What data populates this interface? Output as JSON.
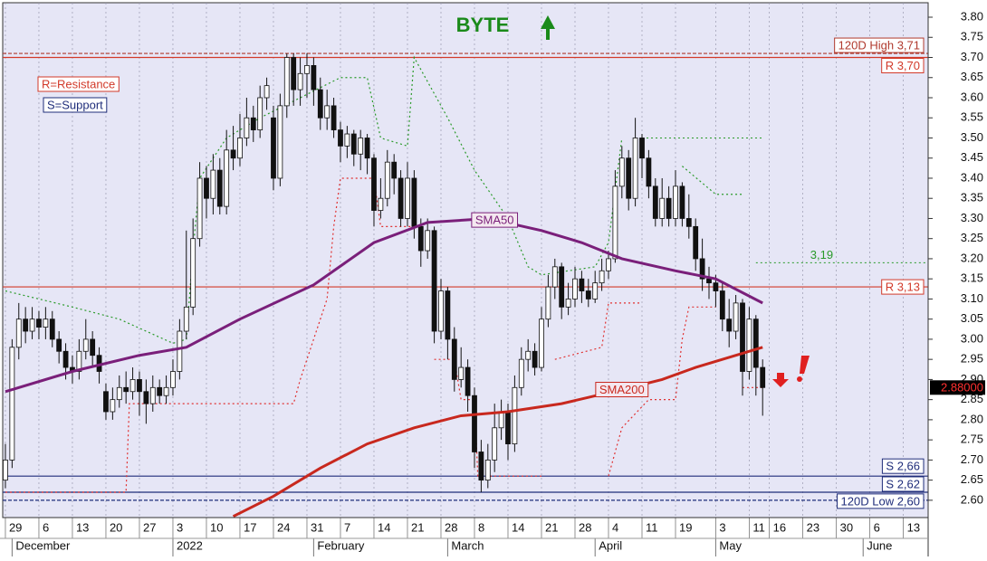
{
  "chart_data": {
    "type": "candlestick",
    "title": "BYTE",
    "title_color": "#1a8a1a",
    "up_color": "#ffffff",
    "down_color": "#111111",
    "background": "#e6e6f6",
    "xlim": [
      -0.4,
      137.7
    ],
    "ylim": [
      2.557,
      3.836
    ],
    "open": [
      2.65,
      2.7,
      2.98,
      3.05,
      3.02,
      3.05,
      3.03,
      3.05,
      3.0,
      2.97,
      2.93,
      2.92,
      2.97,
      3.0,
      2.96,
      2.87,
      2.82,
      2.85,
      2.88,
      2.87,
      2.9,
      2.87,
      2.84,
      2.88,
      2.86,
      2.88,
      2.92,
      3.02,
      3.08,
      3.25,
      3.4,
      3.35,
      3.42,
      3.33,
      3.47,
      3.45,
      3.5,
      3.55,
      3.52,
      3.6,
      3.55,
      3.4,
      3.58,
      3.7,
      3.62,
      3.66,
      3.68,
      3.62,
      3.55,
      3.58,
      3.52,
      3.48,
      3.51,
      3.46,
      3.5,
      3.45,
      3.32,
      3.35,
      3.44,
      3.4,
      3.3,
      3.4,
      3.28,
      3.22,
      3.27,
      3.02,
      3.12,
      3.0,
      2.9,
      2.93,
      2.86,
      2.72,
      2.65,
      2.7,
      2.78,
      2.82,
      2.74,
      2.88,
      2.95,
      2.97,
      2.93,
      3.05,
      3.13,
      3.18,
      3.08,
      3.1,
      3.15,
      3.12,
      3.1,
      3.14,
      3.17,
      3.2,
      3.38,
      3.45,
      3.35,
      3.5,
      3.45,
      3.38,
      3.3,
      3.35,
      3.3,
      3.38,
      3.3,
      3.28,
      3.2,
      3.15,
      3.14,
      3.12,
      3.05,
      3.02,
      3.09,
      2.92,
      3.05,
      2.93
    ],
    "high": [
      2.74,
      3.0,
      3.09,
      3.08,
      3.08,
      3.07,
      3.08,
      3.07,
      3.02,
      2.99,
      2.96,
      3.0,
      3.05,
      3.02,
      2.98,
      2.89,
      2.88,
      2.91,
      2.92,
      2.93,
      2.92,
      2.9,
      2.91,
      2.9,
      2.91,
      2.95,
      3.05,
      3.27,
      3.3,
      3.44,
      3.43,
      3.46,
      3.45,
      3.52,
      3.53,
      3.56,
      3.6,
      3.58,
      3.63,
      3.65,
      3.58,
      3.61,
      3.71,
      3.71,
      3.7,
      3.71,
      3.7,
      3.65,
      3.62,
      3.6,
      3.54,
      3.53,
      3.52,
      3.52,
      3.51,
      3.46,
      3.4,
      3.47,
      3.46,
      3.42,
      3.44,
      3.42,
      3.3,
      3.3,
      3.28,
      3.15,
      3.13,
      3.03,
      2.98,
      2.95,
      2.88,
      2.75,
      2.74,
      2.84,
      2.85,
      2.84,
      2.91,
      2.98,
      3.0,
      2.99,
      3.08,
      3.16,
      3.2,
      3.19,
      3.14,
      3.18,
      3.17,
      3.15,
      3.17,
      3.2,
      3.22,
      3.42,
      3.48,
      3.47,
      3.55,
      3.51,
      3.47,
      3.4,
      3.4,
      3.38,
      3.42,
      3.39,
      3.36,
      3.3,
      3.25,
      3.18,
      3.16,
      3.14,
      3.1,
      3.11,
      3.1,
      3.08,
      3.06,
      2.95
    ],
    "low": [
      2.63,
      2.68,
      2.95,
      2.99,
      3.0,
      3.0,
      3.0,
      2.98,
      2.94,
      2.9,
      2.89,
      2.9,
      2.95,
      2.93,
      2.89,
      2.8,
      2.8,
      2.83,
      2.84,
      2.85,
      2.81,
      2.79,
      2.82,
      2.84,
      2.84,
      2.86,
      2.9,
      3.0,
      3.06,
      3.23,
      3.3,
      3.31,
      3.31,
      3.31,
      3.42,
      3.43,
      3.48,
      3.49,
      3.5,
      3.57,
      3.37,
      3.38,
      3.55,
      3.58,
      3.58,
      3.6,
      3.58,
      3.52,
      3.52,
      3.5,
      3.44,
      3.45,
      3.43,
      3.42,
      3.41,
      3.28,
      3.3,
      3.33,
      3.36,
      3.28,
      3.28,
      3.25,
      3.18,
      3.2,
      2.99,
      3.0,
      2.95,
      2.87,
      2.88,
      2.82,
      2.68,
      2.62,
      2.63,
      2.67,
      2.75,
      2.7,
      2.72,
      2.86,
      2.92,
      2.91,
      2.92,
      3.03,
      3.1,
      3.05,
      3.06,
      3.08,
      3.09,
      3.08,
      3.09,
      3.12,
      3.15,
      3.19,
      3.35,
      3.32,
      3.33,
      3.4,
      3.35,
      3.28,
      3.28,
      3.28,
      3.28,
      3.28,
      3.25,
      3.17,
      3.12,
      3.1,
      3.08,
      3.02,
      2.98,
      3.0,
      2.86,
      2.9,
      2.86,
      2.81
    ],
    "close": [
      2.7,
      2.98,
      3.05,
      3.02,
      3.05,
      3.03,
      3.05,
      3.0,
      2.97,
      2.93,
      2.92,
      2.97,
      3.0,
      2.96,
      2.92,
      2.82,
      2.85,
      2.88,
      2.87,
      2.9,
      2.87,
      2.84,
      2.88,
      2.86,
      2.88,
      2.92,
      3.02,
      3.08,
      3.25,
      3.4,
      3.35,
      3.42,
      3.33,
      3.47,
      3.45,
      3.5,
      3.55,
      3.52,
      3.6,
      3.63,
      3.4,
      3.58,
      3.7,
      3.62,
      3.66,
      3.68,
      3.62,
      3.55,
      3.58,
      3.52,
      3.48,
      3.51,
      3.46,
      3.5,
      3.45,
      3.32,
      3.35,
      3.44,
      3.4,
      3.3,
      3.4,
      3.28,
      3.22,
      3.27,
      3.02,
      3.12,
      3.0,
      2.9,
      2.93,
      2.86,
      2.72,
      2.65,
      2.7,
      2.78,
      2.82,
      2.74,
      2.88,
      2.95,
      2.97,
      2.93,
      3.05,
      3.13,
      3.18,
      3.08,
      3.1,
      3.15,
      3.12,
      3.1,
      3.14,
      3.17,
      3.2,
      3.38,
      3.45,
      3.35,
      3.5,
      3.45,
      3.38,
      3.3,
      3.35,
      3.3,
      3.38,
      3.3,
      3.28,
      3.2,
      3.15,
      3.14,
      3.12,
      3.05,
      3.02,
      3.09,
      2.92,
      3.05,
      2.93,
      2.88
    ],
    "series": [
      {
        "name": "SMA50",
        "color": "#7a1f7a",
        "x": [
          0,
          10,
          20,
          27,
          35,
          46,
          55,
          63,
          72,
          80,
          86,
          92,
          100,
          106,
          113
        ],
        "values": [
          2.87,
          2.92,
          2.96,
          2.98,
          3.05,
          3.135,
          3.24,
          3.29,
          3.3,
          3.27,
          3.24,
          3.2,
          3.17,
          3.15,
          3.09
        ]
      },
      {
        "name": "SMA200",
        "color": "#c8281e",
        "x": [
          34,
          40,
          47,
          54,
          61,
          68,
          75,
          83,
          92,
          98,
          103,
          108,
          113
        ],
        "values": [
          2.56,
          2.61,
          2.68,
          2.74,
          2.78,
          2.81,
          2.82,
          2.84,
          2.875,
          2.9,
          2.93,
          2.955,
          2.98
        ]
      }
    ],
    "trails": [
      {
        "color": "#e03030",
        "x": [
          0,
          18,
          18.5,
          43,
          44,
          46,
          48,
          49,
          50,
          55,
          56,
          61,
          null,
          64,
          67,
          68,
          70,
          70.5,
          80,
          null,
          82,
          89,
          90,
          95,
          null,
          90,
          92,
          96,
          100,
          101,
          102,
          106,
          null,
          110,
          113
        ],
        "values": [
          2.62,
          2.62,
          2.84,
          2.84,
          2.9,
          3.0,
          3.1,
          3.28,
          3.4,
          3.4,
          3.28,
          3.28,
          null,
          2.95,
          2.95,
          2.85,
          2.85,
          2.66,
          2.66,
          null,
          2.95,
          2.98,
          3.09,
          3.09,
          null,
          2.66,
          2.78,
          2.85,
          2.85,
          3.0,
          3.08,
          3.08,
          null,
          2.88,
          2.88
        ]
      },
      {
        "color": "#2a9a2a",
        "x": [
          0,
          10,
          17,
          25,
          27,
          28,
          29,
          33,
          38,
          50,
          54,
          56,
          60,
          61,
          66,
          70,
          75,
          78,
          80,
          88,
          90,
          92,
          null,
          101,
          106,
          110
        ],
        "values": [
          3.12,
          3.08,
          3.05,
          2.99,
          3.0,
          3.22,
          3.4,
          3.5,
          3.55,
          3.65,
          3.65,
          3.5,
          3.48,
          3.7,
          3.55,
          3.42,
          3.3,
          3.18,
          3.16,
          3.18,
          3.24,
          3.5,
          null,
          3.43,
          3.36,
          3.36
        ]
      }
    ],
    "levels": [
      {
        "label": "120D High 3,71",
        "value": 3.71,
        "color": "#b03a2e",
        "dashed": true
      },
      {
        "label": "R 3,70",
        "value": 3.7,
        "color": "#d23a2a",
        "dashed": false
      },
      {
        "label": "R 3,13",
        "value": 3.13,
        "color": "#d23a2a",
        "dashed": false
      },
      {
        "label": "S 2,66",
        "value": 2.66,
        "color": "#1f2d7a",
        "dashed": false
      },
      {
        "label": "S 2,62",
        "value": 2.62,
        "color": "#1f2d7a",
        "dashed": false
      },
      {
        "label": "120D Low 2,60",
        "value": 2.6,
        "color": "#1f2d7a",
        "dashed": true
      }
    ],
    "dotted_levels": [
      {
        "label": "3,19",
        "value": 3.19,
        "x": [
          112,
          137.7
        ],
        "color": "#2a9a2a"
      },
      {
        "value": 3.5,
        "x": [
          95,
          113
        ],
        "color": "#2a9a2a"
      }
    ],
    "legend_notes": [
      {
        "text": "R=Resistance",
        "color": "#d23a2a"
      },
      {
        "text": "S=Support",
        "color": "#1f2d7a"
      }
    ],
    "price_tag": {
      "value": 2.88,
      "label": "2.88000"
    },
    "yticks": [
      {
        "value": 2.6,
        "label": "2.60"
      },
      {
        "value": 2.65,
        "label": "2.65"
      },
      {
        "value": 2.7,
        "label": "2.70"
      },
      {
        "value": 2.75,
        "label": "2.75"
      },
      {
        "value": 2.8,
        "label": "2.80"
      },
      {
        "value": 2.85,
        "label": "2.85"
      },
      {
        "value": 2.9,
        "label": "2.90"
      },
      {
        "value": 2.95,
        "label": "2.95"
      },
      {
        "value": 3.0,
        "label": "3.00"
      },
      {
        "value": 3.05,
        "label": "3.05"
      },
      {
        "value": 3.1,
        "label": "3.10"
      },
      {
        "value": 3.15,
        "label": "3.15"
      },
      {
        "value": 3.2,
        "label": "3.20"
      },
      {
        "value": 3.25,
        "label": "3.25"
      },
      {
        "value": 3.3,
        "label": "3.30"
      },
      {
        "value": 3.35,
        "label": "3.35"
      },
      {
        "value": 3.4,
        "label": "3.40"
      },
      {
        "value": 3.45,
        "label": "3.45"
      },
      {
        "value": 3.5,
        "label": "3.50"
      },
      {
        "value": 3.55,
        "label": "3.55"
      },
      {
        "value": 3.6,
        "label": "3.60"
      },
      {
        "value": 3.65,
        "label": "3.65"
      },
      {
        "value": 3.7,
        "label": "3.70"
      },
      {
        "value": 3.75,
        "label": "3.75"
      },
      {
        "value": 3.8,
        "label": "3.80"
      }
    ],
    "xticks": [
      {
        "value": 0,
        "label": "29"
      },
      {
        "value": 5,
        "label": "6"
      },
      {
        "value": 10,
        "label": "13"
      },
      {
        "value": 15,
        "label": "20"
      },
      {
        "value": 20,
        "label": "27"
      },
      {
        "value": 25,
        "label": "3"
      },
      {
        "value": 30,
        "label": "10"
      },
      {
        "value": 35,
        "label": "17"
      },
      {
        "value": 40,
        "label": "24"
      },
      {
        "value": 45,
        "label": "31"
      },
      {
        "value": 50,
        "label": "7"
      },
      {
        "value": 55,
        "label": "14"
      },
      {
        "value": 60,
        "label": "21"
      },
      {
        "value": 65,
        "label": "28"
      },
      {
        "value": 70,
        "label": "8"
      },
      {
        "value": 75,
        "label": "14"
      },
      {
        "value": 80,
        "label": "21"
      },
      {
        "value": 85,
        "label": "28"
      },
      {
        "value": 90,
        "label": "4"
      },
      {
        "value": 95,
        "label": "11"
      },
      {
        "value": 100,
        "label": "19"
      },
      {
        "value": 106,
        "label": "3"
      },
      {
        "value": 111,
        "label": "11"
      },
      {
        "value": 114,
        "label": "16"
      },
      {
        "value": 119,
        "label": "23"
      },
      {
        "value": 124,
        "label": "30"
      },
      {
        "value": 129,
        "label": "6"
      },
      {
        "value": 134,
        "label": "13"
      }
    ],
    "months": [
      {
        "value": 1,
        "label": "December"
      },
      {
        "value": 25,
        "label": "2022"
      },
      {
        "value": 46,
        "label": "February"
      },
      {
        "value": 66,
        "label": "March"
      },
      {
        "value": 88,
        "label": "April"
      },
      {
        "value": 106,
        "label": "May"
      },
      {
        "value": 128,
        "label": "June"
      }
    ]
  }
}
